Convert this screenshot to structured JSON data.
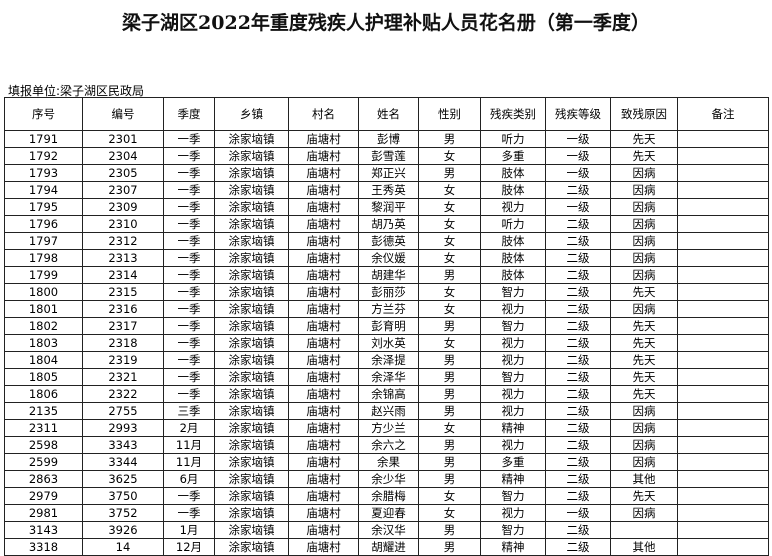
{
  "header": {
    "title": "梁子湖区2022年重度残疾人护理补贴人员花名册（第一季度）",
    "filer": "填报单位:梁子湖区民政局"
  },
  "table": {
    "columns": [
      "序号",
      "编号",
      "季度",
      "乡镇",
      "村名",
      "姓名",
      "性别",
      "残疾类别",
      "残疾等级",
      "致残原因",
      "备注"
    ],
    "rows": [
      [
        "1791",
        "2301",
        "一季",
        "涂家垴镇",
        "庙塘村",
        "彭博",
        "男",
        "听力",
        "一级",
        "先天"
      ],
      [
        "1792",
        "2304",
        "一季",
        "涂家垴镇",
        "庙塘村",
        "彭雪莲",
        "女",
        "多重",
        "一级",
        "先天"
      ],
      [
        "1793",
        "2305",
        "一季",
        "涂家垴镇",
        "庙塘村",
        "郑正兴",
        "男",
        "肢体",
        "一级",
        "因病"
      ],
      [
        "1794",
        "2307",
        "一季",
        "涂家垴镇",
        "庙塘村",
        "王秀英",
        "女",
        "肢体",
        "二级",
        "因病"
      ],
      [
        "1795",
        "2309",
        "一季",
        "涂家垴镇",
        "庙塘村",
        "黎润平",
        "女",
        "视力",
        "一级",
        "因病"
      ],
      [
        "1796",
        "2310",
        "一季",
        "涂家垴镇",
        "庙塘村",
        "胡乃英",
        "女",
        "听力",
        "二级",
        "因病"
      ],
      [
        "1797",
        "2312",
        "一季",
        "涂家垴镇",
        "庙塘村",
        "彭德英",
        "女",
        "肢体",
        "二级",
        "因病"
      ],
      [
        "1798",
        "2313",
        "一季",
        "涂家垴镇",
        "庙塘村",
        "余仪媛",
        "女",
        "肢体",
        "二级",
        "因病"
      ],
      [
        "1799",
        "2314",
        "一季",
        "涂家垴镇",
        "庙塘村",
        "胡建华",
        "男",
        "肢体",
        "二级",
        "因病"
      ],
      [
        "1800",
        "2315",
        "一季",
        "涂家垴镇",
        "庙塘村",
        "彭丽莎",
        "女",
        "智力",
        "二级",
        "先天"
      ],
      [
        "1801",
        "2316",
        "一季",
        "涂家垴镇",
        "庙塘村",
        "方兰芬",
        "女",
        "视力",
        "二级",
        "因病"
      ],
      [
        "1802",
        "2317",
        "一季",
        "涂家垴镇",
        "庙塘村",
        "彭育明",
        "男",
        "智力",
        "二级",
        "先天"
      ],
      [
        "1803",
        "2318",
        "一季",
        "涂家垴镇",
        "庙塘村",
        "刘水英",
        "女",
        "视力",
        "二级",
        "先天"
      ],
      [
        "1804",
        "2319",
        "一季",
        "涂家垴镇",
        "庙塘村",
        "余泽提",
        "男",
        "视力",
        "二级",
        "先天"
      ],
      [
        "1805",
        "2321",
        "一季",
        "涂家垴镇",
        "庙塘村",
        "余泽华",
        "男",
        "智力",
        "二级",
        "先天"
      ],
      [
        "1806",
        "2322",
        "一季",
        "涂家垴镇",
        "庙塘村",
        "余锦高",
        "男",
        "视力",
        "二级",
        "先天"
      ],
      [
        "2135",
        "2755",
        "三季",
        "涂家垴镇",
        "庙塘村",
        "赵兴雨",
        "男",
        "视力",
        "二级",
        "因病"
      ],
      [
        "2311",
        "2993",
        "2月",
        "涂家垴镇",
        "庙塘村",
        "方少兰",
        "女",
        "精神",
        "二级",
        "因病"
      ],
      [
        "2598",
        "3343",
        "11月",
        "涂家垴镇",
        "庙塘村",
        "余六之",
        "男",
        "视力",
        "二级",
        "因病"
      ],
      [
        "2599",
        "3344",
        "11月",
        "涂家垴镇",
        "庙塘村",
        "余果",
        "男",
        "多重",
        "二级",
        "因病"
      ],
      [
        "2863",
        "3625",
        "6月",
        "涂家垴镇",
        "庙塘村",
        "余少华",
        "男",
        "精神",
        "二级",
        "其他"
      ],
      [
        "2979",
        "3750",
        "一季",
        "涂家垴镇",
        "庙塘村",
        "余腊梅",
        "女",
        "智力",
        "二级",
        "先天"
      ],
      [
        "2981",
        "3752",
        "一季",
        "涂家垴镇",
        "庙塘村",
        "夏迎春",
        "女",
        "视力",
        "一级",
        "因病"
      ],
      [
        "3143",
        "3926",
        "1月",
        "涂家垴镇",
        "庙塘村",
        "余汉华",
        "男",
        "智力",
        "二级"
      ],
      [
        "3318",
        "14",
        "12月",
        "涂家垴镇",
        "庙塘村",
        "胡耀进",
        "男",
        "精神",
        "二级",
        "其他"
      ]
    ]
  }
}
